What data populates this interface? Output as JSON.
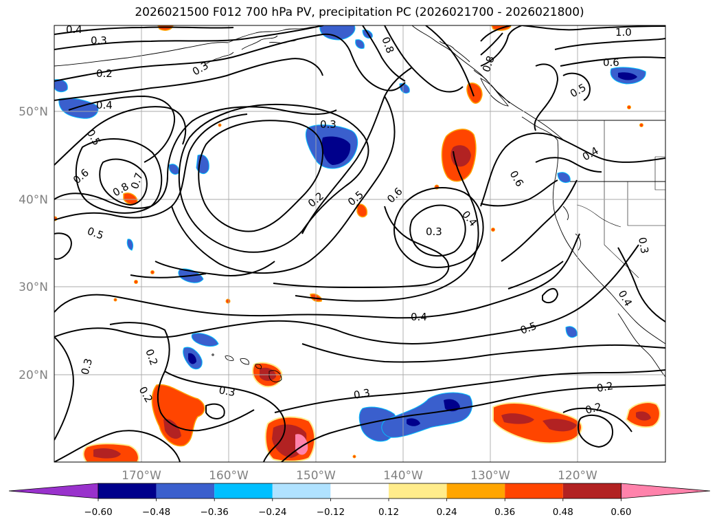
{
  "title": "2026021500 F012 700 hPa PV, precipitation PC (2026021700 - 2026021800)",
  "latitude_labels": [
    "50°N",
    "40°N",
    "30°N",
    "20°N"
  ],
  "longitude_labels": [
    "170°W",
    "160°W",
    "150°W",
    "140°W",
    "130°W",
    "120°W"
  ],
  "colorbar": {
    "tick_labels": [
      "−0.60",
      "−0.48",
      "−0.36",
      "−0.24",
      "−0.12",
      "0.12",
      "0.24",
      "0.36",
      "0.48",
      "0.60"
    ],
    "colors": [
      "#9932cc",
      "#00008b",
      "#3a5fcd",
      "#00bfff",
      "#b0e2ff",
      "#ffffff",
      "#ffec8b",
      "#ffa500",
      "#ff4500",
      "#b22222",
      "#ff82ab"
    ]
  },
  "contour_labels": [
    "0.4",
    "0.3",
    "0.2",
    "0.4",
    "0.5",
    "0.6",
    "0.8",
    "0.7",
    "0.5",
    "0.3",
    "0.2",
    "0.5",
    "0.6",
    "0.3",
    "0.4",
    "0.6",
    "0.8",
    "0.8",
    "1.0",
    "0.6",
    "0.5",
    "0.4",
    "0.3",
    "0.4",
    "0.5",
    "0.3",
    "0.2",
    "0.2",
    "0.3",
    "0.3",
    "0.2",
    "0.2",
    "0.4",
    "0.3"
  ]
}
